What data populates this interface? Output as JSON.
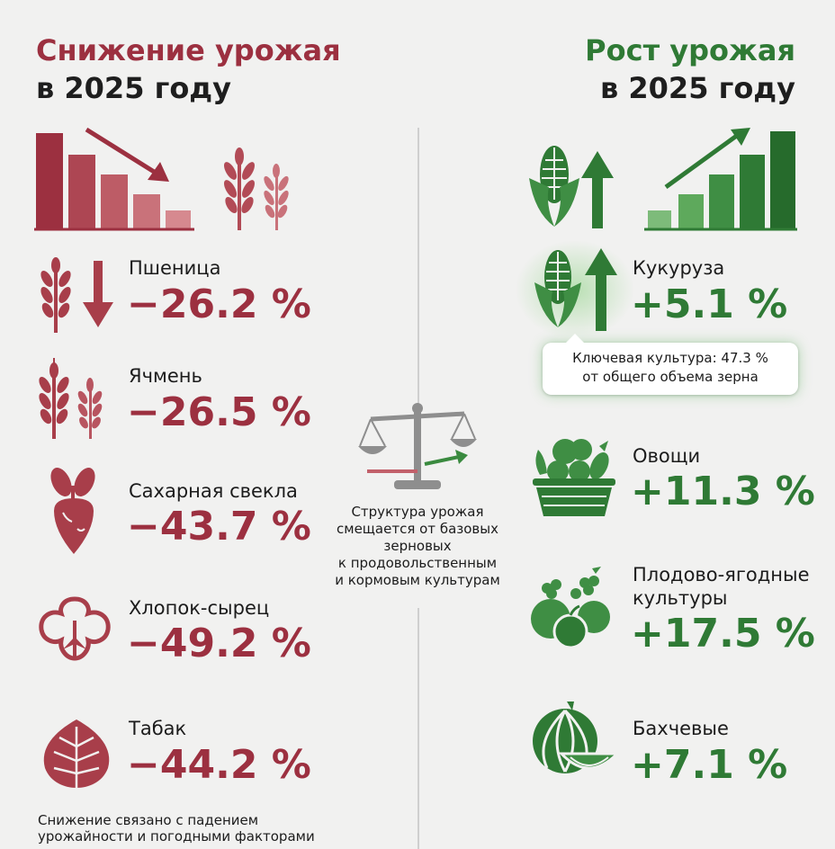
{
  "left": {
    "title_line1": "Снижение урожая",
    "title_line2": "в 2025 году",
    "items": [
      {
        "name": "Пшеница",
        "value": "−26.2 %",
        "icon": "wheat-icon"
      },
      {
        "name": "Ячмень",
        "value": "−26.5 %",
        "icon": "barley-icon"
      },
      {
        "name": "Сахарная свекла",
        "value": "−43.7 %",
        "icon": "beet-icon"
      },
      {
        "name": "Хлопок-сырец",
        "value": "−49.2 %",
        "icon": "cotton-icon"
      },
      {
        "name": "Табак",
        "value": "−44.2 %",
        "icon": "tobacco-leaf-icon"
      }
    ],
    "footer_line1": "Снижение связано с падением",
    "footer_line2": "урожайности и погодными факторами"
  },
  "right": {
    "title_line1": "Рост урожая",
    "title_line2": "в 2025 году",
    "items": [
      {
        "name": "Кукуруза",
        "value": "+5.1 %",
        "icon": "corn-icon"
      },
      {
        "name": "Овощи",
        "value": "+11.3 %",
        "icon": "vegetable-basket-icon"
      },
      {
        "name_line1": "Плодово-ягодные",
        "name_line2": "культуры",
        "value": "+17.5 %",
        "icon": "fruit-icon"
      },
      {
        "name": "Бахчевые",
        "value": "+7.1 %",
        "icon": "melon-icon"
      }
    ],
    "callout_line1": "Ключевая культура: 47.3 %",
    "callout_line2": "от общего объема зерна"
  },
  "center": {
    "note_line1": "Структура урожая",
    "note_line2": "смещается от базовых",
    "note_line3": "зерновых",
    "note_line4": "к продовольственным",
    "note_line5": "и кормовым культурам",
    "icon": "scales-icon"
  },
  "colors": {
    "decline": "#9c3040",
    "decline_light": "#c2606a",
    "growth": "#2f7a35",
    "growth_light": "#6aa86a",
    "text": "#1c1c1c"
  }
}
